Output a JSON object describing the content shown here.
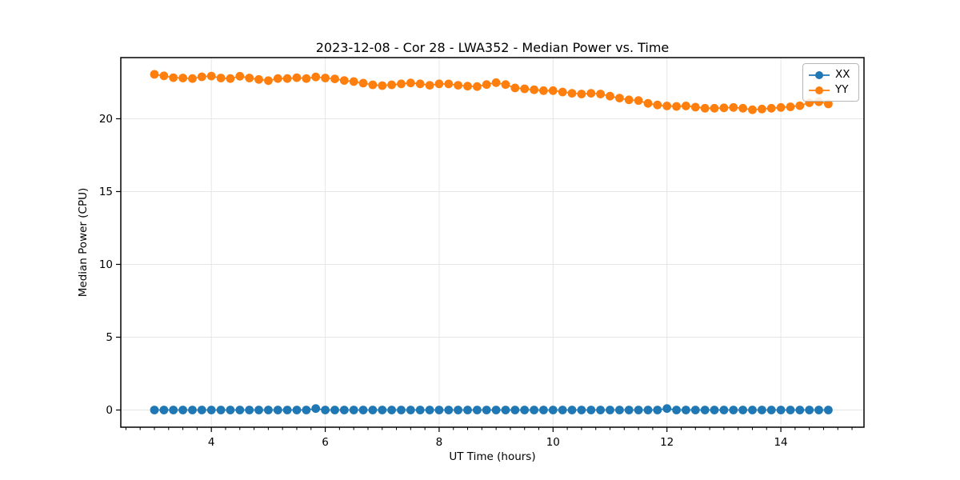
{
  "figure": {
    "title": "2023-12-08 - Cor 28 - LWA352 - Median Power vs. Time"
  },
  "axes": {
    "xlabel": "UT Time (hours)",
    "ylabel": "Median Power (CPU)",
    "xlim": [
      2.41,
      15.46
    ],
    "ylim": [
      -1.18,
      24.2
    ],
    "xticks": [
      4,
      6,
      8,
      10,
      12,
      14
    ],
    "yticks": [
      0,
      5,
      10,
      15,
      20
    ],
    "x_minor_step": 0.25,
    "grid": "major-both",
    "grid_color": "#e6e6e6",
    "spine_color": "#000000"
  },
  "legend": {
    "position": "upper-right",
    "items": [
      {
        "label": "XX",
        "color": "#1f77b4"
      },
      {
        "label": "YY",
        "color": "#ff7f0e"
      }
    ]
  },
  "chart_data": {
    "type": "line",
    "title": "2023-12-08 - Cor 28 - LWA352 - Median Power vs. Time",
    "xlabel": "UT Time (hours)",
    "ylabel": "Median Power (CPU)",
    "xlim": [
      2.41,
      15.46
    ],
    "ylim": [
      -1.18,
      24.2
    ],
    "marker": "o",
    "x": [
      3.0,
      3.167,
      3.333,
      3.5,
      3.667,
      3.833,
      4.0,
      4.167,
      4.333,
      4.5,
      4.667,
      4.833,
      5.0,
      5.167,
      5.333,
      5.5,
      5.667,
      5.833,
      6.0,
      6.167,
      6.333,
      6.5,
      6.667,
      6.833,
      7.0,
      7.167,
      7.333,
      7.5,
      7.667,
      7.833,
      8.0,
      8.167,
      8.333,
      8.5,
      8.667,
      8.833,
      9.0,
      9.167,
      9.333,
      9.5,
      9.667,
      9.833,
      10.0,
      10.167,
      10.333,
      10.5,
      10.667,
      10.833,
      11.0,
      11.167,
      11.333,
      11.5,
      11.667,
      11.833,
      12.0,
      12.167,
      12.333,
      12.5,
      12.667,
      12.833,
      13.0,
      13.167,
      13.333,
      13.5,
      13.667,
      13.833,
      14.0,
      14.167,
      14.333,
      14.5,
      14.667,
      14.833
    ],
    "series": [
      {
        "name": "XX",
        "color": "#1f77b4",
        "values": [
          0.0,
          0.0,
          0.0,
          0.0,
          0.0,
          0.0,
          0.0,
          0.0,
          0.0,
          0.0,
          0.0,
          0.0,
          0.0,
          0.0,
          0.0,
          0.0,
          0.0,
          0.1,
          0.0,
          0.0,
          0.0,
          0.0,
          0.0,
          0.0,
          0.0,
          0.0,
          0.0,
          0.0,
          0.0,
          0.0,
          0.0,
          0.0,
          0.0,
          0.0,
          0.0,
          0.0,
          0.0,
          0.0,
          0.0,
          0.0,
          0.0,
          0.0,
          0.0,
          0.0,
          0.0,
          0.0,
          0.0,
          0.0,
          0.0,
          0.0,
          0.0,
          0.0,
          0.0,
          0.0,
          0.1,
          0.0,
          0.0,
          0.0,
          0.0,
          0.0,
          0.0,
          0.0,
          0.0,
          0.0,
          0.0,
          0.0,
          0.0,
          0.0,
          0.0,
          0.0,
          0.0,
          0.0
        ]
      },
      {
        "name": "YY",
        "color": "#ff7f0e",
        "values": [
          23.05,
          22.95,
          22.82,
          22.8,
          22.76,
          22.88,
          22.93,
          22.8,
          22.76,
          22.92,
          22.8,
          22.7,
          22.62,
          22.76,
          22.76,
          22.82,
          22.76,
          22.87,
          22.8,
          22.74,
          22.63,
          22.56,
          22.45,
          22.33,
          22.28,
          22.33,
          22.4,
          22.46,
          22.4,
          22.3,
          22.4,
          22.39,
          22.3,
          22.24,
          22.21,
          22.35,
          22.48,
          22.35,
          22.12,
          22.06,
          21.99,
          21.93,
          21.93,
          21.84,
          21.75,
          21.7,
          21.75,
          21.7,
          21.55,
          21.42,
          21.3,
          21.25,
          21.06,
          20.95,
          20.88,
          20.85,
          20.88,
          20.8,
          20.72,
          20.72,
          20.75,
          20.78,
          20.72,
          20.62,
          20.67,
          20.72,
          20.78,
          20.82,
          20.9,
          21.1,
          21.17,
          21.02
        ]
      }
    ]
  }
}
